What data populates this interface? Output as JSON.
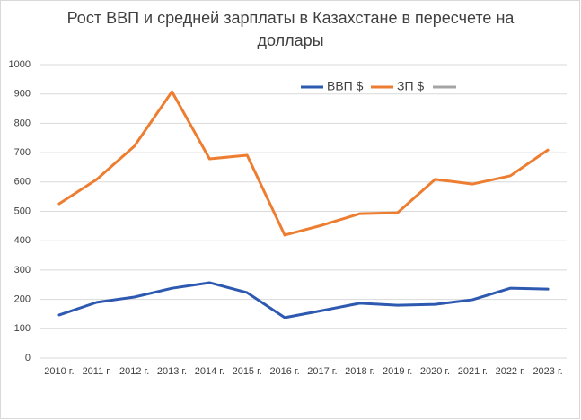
{
  "chart_data": {
    "type": "line",
    "title": "Рост ВВП и средней зарплаты в Казахстане в пересчете на доллары",
    "categories": [
      "2010 г.",
      "2011 г.",
      "2012 г.",
      "2013 г.",
      "2014 г.",
      "2015 г.",
      "2016 г.",
      "2017 г.",
      "2018 г.",
      "2019 г.",
      "2020 г.",
      "2021 г.",
      "2022 г.",
      "2023 г."
    ],
    "series": [
      {
        "name": "ВВП $",
        "color": "#2e59b0",
        "values": [
          147,
          190,
          208,
          238,
          257,
          223,
          138,
          162,
          187,
          180,
          183,
          199,
          238,
          235
        ]
      },
      {
        "name": "ЗП $",
        "color": "#ed7d31",
        "values": [
          526,
          609,
          722,
          908,
          679,
          691,
          419,
          453,
          492,
          495,
          609,
          593,
          621,
          709
        ]
      }
    ],
    "ylim": [
      0,
      1000
    ],
    "yticks": [
      0,
      100,
      200,
      300,
      400,
      500,
      600,
      700,
      800,
      900,
      1000
    ],
    "grid": true
  }
}
